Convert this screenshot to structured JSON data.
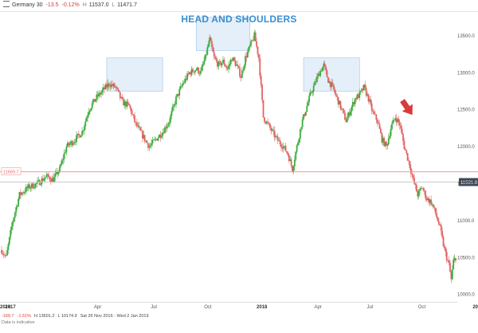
{
  "header": {
    "instrument": "Germany 30",
    "change": "-13.5",
    "change_pct": "-0.12%",
    "high_label": "H",
    "high": "11537.0",
    "low_label": "L",
    "low": "11471.7"
  },
  "footer": {
    "change": "-160.7",
    "change_pct": "-1.51%",
    "high": "H 13601.2",
    "low": "L 10174.9",
    "range": "Sat 26 Nov 2016 - Wed 2 Jan 2019",
    "note": "Data is indicative"
  },
  "colors": {
    "up": "#3cab3c",
    "down": "#e06464",
    "title": "#3a8ed0",
    "neckline": "#ef9a9a",
    "price_line": "#c8c8c8",
    "price_tag": "#3d4956",
    "box_fill": "#dbe9f7",
    "box_stroke": "#9fc3e6",
    "arrow": "#d83b3b"
  },
  "chart_data": {
    "type": "candlestick",
    "title": "HEAD AND SHOULDERS",
    "ylim": [
      9900,
      13800
    ],
    "yticks": [
      "13500.0",
      "13000.0",
      "12500.0",
      "12000.0",
      "11500.0",
      "11000.0",
      "10500.0",
      "10000.0"
    ],
    "ytick_values": [
      13500,
      13000,
      12500,
      12000,
      11500,
      11000,
      10500,
      10000
    ],
    "xticks": [
      {
        "label": "2016",
        "bold": true
      },
      {
        "label": "2017",
        "bold": true
      },
      {
        "label": "Apr",
        "bold": false
      },
      {
        "label": "Jul",
        "bold": false
      },
      {
        "label": "Oct",
        "bold": false
      },
      {
        "label": "2018",
        "bold": true
      },
      {
        "label": "Apr",
        "bold": false
      },
      {
        "label": "Jul",
        "bold": false
      },
      {
        "label": "Oct",
        "bold": false
      },
      {
        "label": "20",
        "bold": true
      }
    ],
    "neckline": {
      "value": 11659.7,
      "label": "11659.7"
    },
    "current_price": {
      "value": 11521.0,
      "label": "11521.0"
    },
    "price_path": [
      [
        0,
        10600
      ],
      [
        2,
        10500
      ],
      [
        5,
        11000
      ],
      [
        8,
        11350
      ],
      [
        12,
        11450
      ],
      [
        16,
        11500
      ],
      [
        20,
        11600
      ],
      [
        23,
        11550
      ],
      [
        26,
        11700
      ],
      [
        29,
        12000
      ],
      [
        33,
        12100
      ],
      [
        36,
        12200
      ],
      [
        39,
        12500
      ],
      [
        42,
        12650
      ],
      [
        45,
        12750
      ],
      [
        48,
        12850
      ],
      [
        51,
        12800
      ],
      [
        54,
        12600
      ],
      [
        57,
        12550
      ],
      [
        60,
        12300
      ],
      [
        63,
        12150
      ],
      [
        66,
        12000
      ],
      [
        69,
        12100
      ],
      [
        72,
        12200
      ],
      [
        75,
        12350
      ],
      [
        78,
        12650
      ],
      [
        81,
        12850
      ],
      [
        84,
        13000
      ],
      [
        87,
        13050
      ],
      [
        89,
        13000
      ],
      [
        91,
        13200
      ],
      [
        93,
        13450
      ],
      [
        95,
        13200
      ],
      [
        97,
        13100
      ],
      [
        99,
        13150
      ],
      [
        101,
        13050
      ],
      [
        103,
        13200
      ],
      [
        105,
        13100
      ],
      [
        107,
        12950
      ],
      [
        109,
        13200
      ],
      [
        111,
        13350
      ],
      [
        113,
        13500
      ],
      [
        115,
        13200
      ],
      [
        117,
        12400
      ],
      [
        119,
        12300
      ],
      [
        121,
        12200
      ],
      [
        123,
        12100
      ],
      [
        126,
        12000
      ],
      [
        128,
        11900
      ],
      [
        130,
        11700
      ],
      [
        132,
        12000
      ],
      [
        134,
        12300
      ],
      [
        136,
        12500
      ],
      [
        138,
        12700
      ],
      [
        140,
        12850
      ],
      [
        142,
        13000
      ],
      [
        144,
        13100
      ],
      [
        146,
        12900
      ],
      [
        148,
        12800
      ],
      [
        150,
        12650
      ],
      [
        152,
        12500
      ],
      [
        154,
        12350
      ],
      [
        156,
        12500
      ],
      [
        158,
        12650
      ],
      [
        160,
        12700
      ],
      [
        162,
        12800
      ],
      [
        164,
        12650
      ],
      [
        166,
        12450
      ],
      [
        168,
        12350
      ],
      [
        170,
        12100
      ],
      [
        172,
        12000
      ],
      [
        174,
        12250
      ],
      [
        176,
        12400
      ],
      [
        178,
        12300
      ],
      [
        180,
        12000
      ],
      [
        182,
        11800
      ],
      [
        184,
        11550
      ],
      [
        186,
        11350
      ],
      [
        188,
        11450
      ],
      [
        190,
        11300
      ],
      [
        192,
        11250
      ],
      [
        194,
        11100
      ],
      [
        196,
        10900
      ],
      [
        198,
        10600
      ],
      [
        200,
        10400
      ],
      [
        201,
        10200
      ],
      [
        202,
        10450
      ],
      [
        203,
        10500
      ]
    ],
    "pattern_boxes": [
      {
        "label": "left-shoulder",
        "x": [
          47,
          72
        ],
        "y": [
          12750,
          13200
        ]
      },
      {
        "label": "head",
        "x": [
          87,
          111
        ],
        "y": [
          13300,
          13750
        ]
      },
      {
        "label": "right-shoulder",
        "x": [
          135,
          160
        ],
        "y": [
          12750,
          13200
        ]
      }
    ],
    "arrow_at": [
      182,
      12500
    ],
    "x_range": [
      0,
      203
    ]
  }
}
